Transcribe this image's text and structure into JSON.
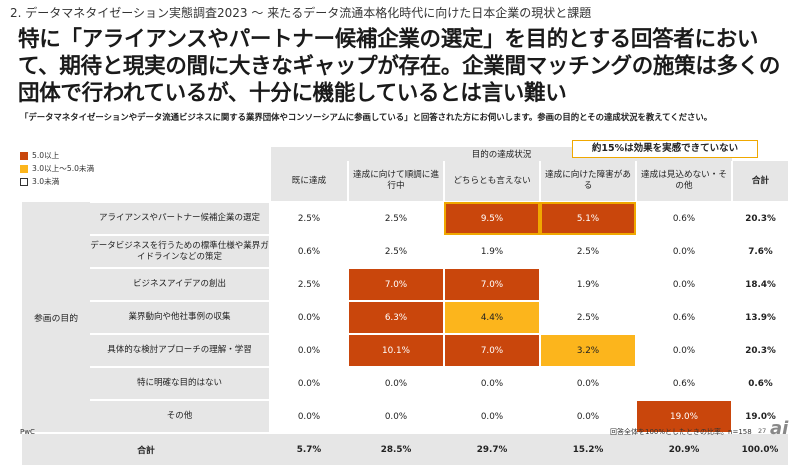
{
  "header": "2. データマネタイゼーション実態調査2023 ～ 来たるデータ流通本格化時代に向けた日本企業の現状と課題",
  "headline": "特に「アライアンスやパートナー候補企業の選定」を目的とする回答者において、期待と現実の間に大きなギャップが存在。企業間マッチングの施策は多くの団体で行われているが、十分に機能しているとは言い難い",
  "question": "「データマネタイゼーションやデータ流通ビジネスに関する業界団体やコンソーシアムに参画している」と回答された方にお伺いします。参画の目的とその達成状況を教えてください。",
  "legend": [
    {
      "label": "5.0以上",
      "color": "#c9460c"
    },
    {
      "label": "3.0以上～5.0未満",
      "color": "#fcb51c"
    },
    {
      "label": "3.0未満",
      "color": "#ffffff"
    }
  ],
  "callout": "約15%は効果を実感できていない",
  "table": {
    "group_header": "目的の達成状況",
    "row_axis_label": "参画の目的",
    "columns": [
      "既に達成",
      "達成に向けて順調に進行中",
      "どちらとも言えない",
      "達成に向けた障害がある",
      "達成は見込めない・その他",
      "合計"
    ],
    "rows": [
      {
        "label": "アライアンスやパートナー候補企業の選定",
        "values": [
          "2.5%",
          "2.5%",
          "9.5%",
          "5.1%",
          "0.6%",
          "20.3%"
        ]
      },
      {
        "label": "データビジネスを行うための標準仕様や業界ガイドラインなどの策定",
        "values": [
          "0.6%",
          "2.5%",
          "1.9%",
          "2.5%",
          "0.0%",
          "7.6%"
        ]
      },
      {
        "label": "ビジネスアイデアの創出",
        "values": [
          "2.5%",
          "7.0%",
          "7.0%",
          "1.9%",
          "0.0%",
          "18.4%"
        ]
      },
      {
        "label": "業界動向や他社事例の収集",
        "values": [
          "0.0%",
          "6.3%",
          "4.4%",
          "2.5%",
          "0.6%",
          "13.9%"
        ]
      },
      {
        "label": "具体的な検討アプローチの理解・学習",
        "values": [
          "0.0%",
          "10.1%",
          "7.0%",
          "3.2%",
          "0.0%",
          "20.3%"
        ]
      },
      {
        "label": "特に明確な目的はない",
        "values": [
          "0.0%",
          "0.0%",
          "0.0%",
          "0.0%",
          "0.6%",
          "0.6%"
        ]
      },
      {
        "label": "その他",
        "values": [
          "0.0%",
          "0.0%",
          "0.0%",
          "0.0%",
          "19.0%",
          "19.0%"
        ]
      }
    ],
    "total": {
      "label": "合計",
      "values": [
        "5.7%",
        "28.5%",
        "29.7%",
        "15.2%",
        "20.9%",
        "100.0%"
      ]
    }
  },
  "footer_left": "PwC",
  "footer_right": "回答全体を100%としたときの比率。n=158",
  "page_number": "27",
  "logo_text": "ai"
}
